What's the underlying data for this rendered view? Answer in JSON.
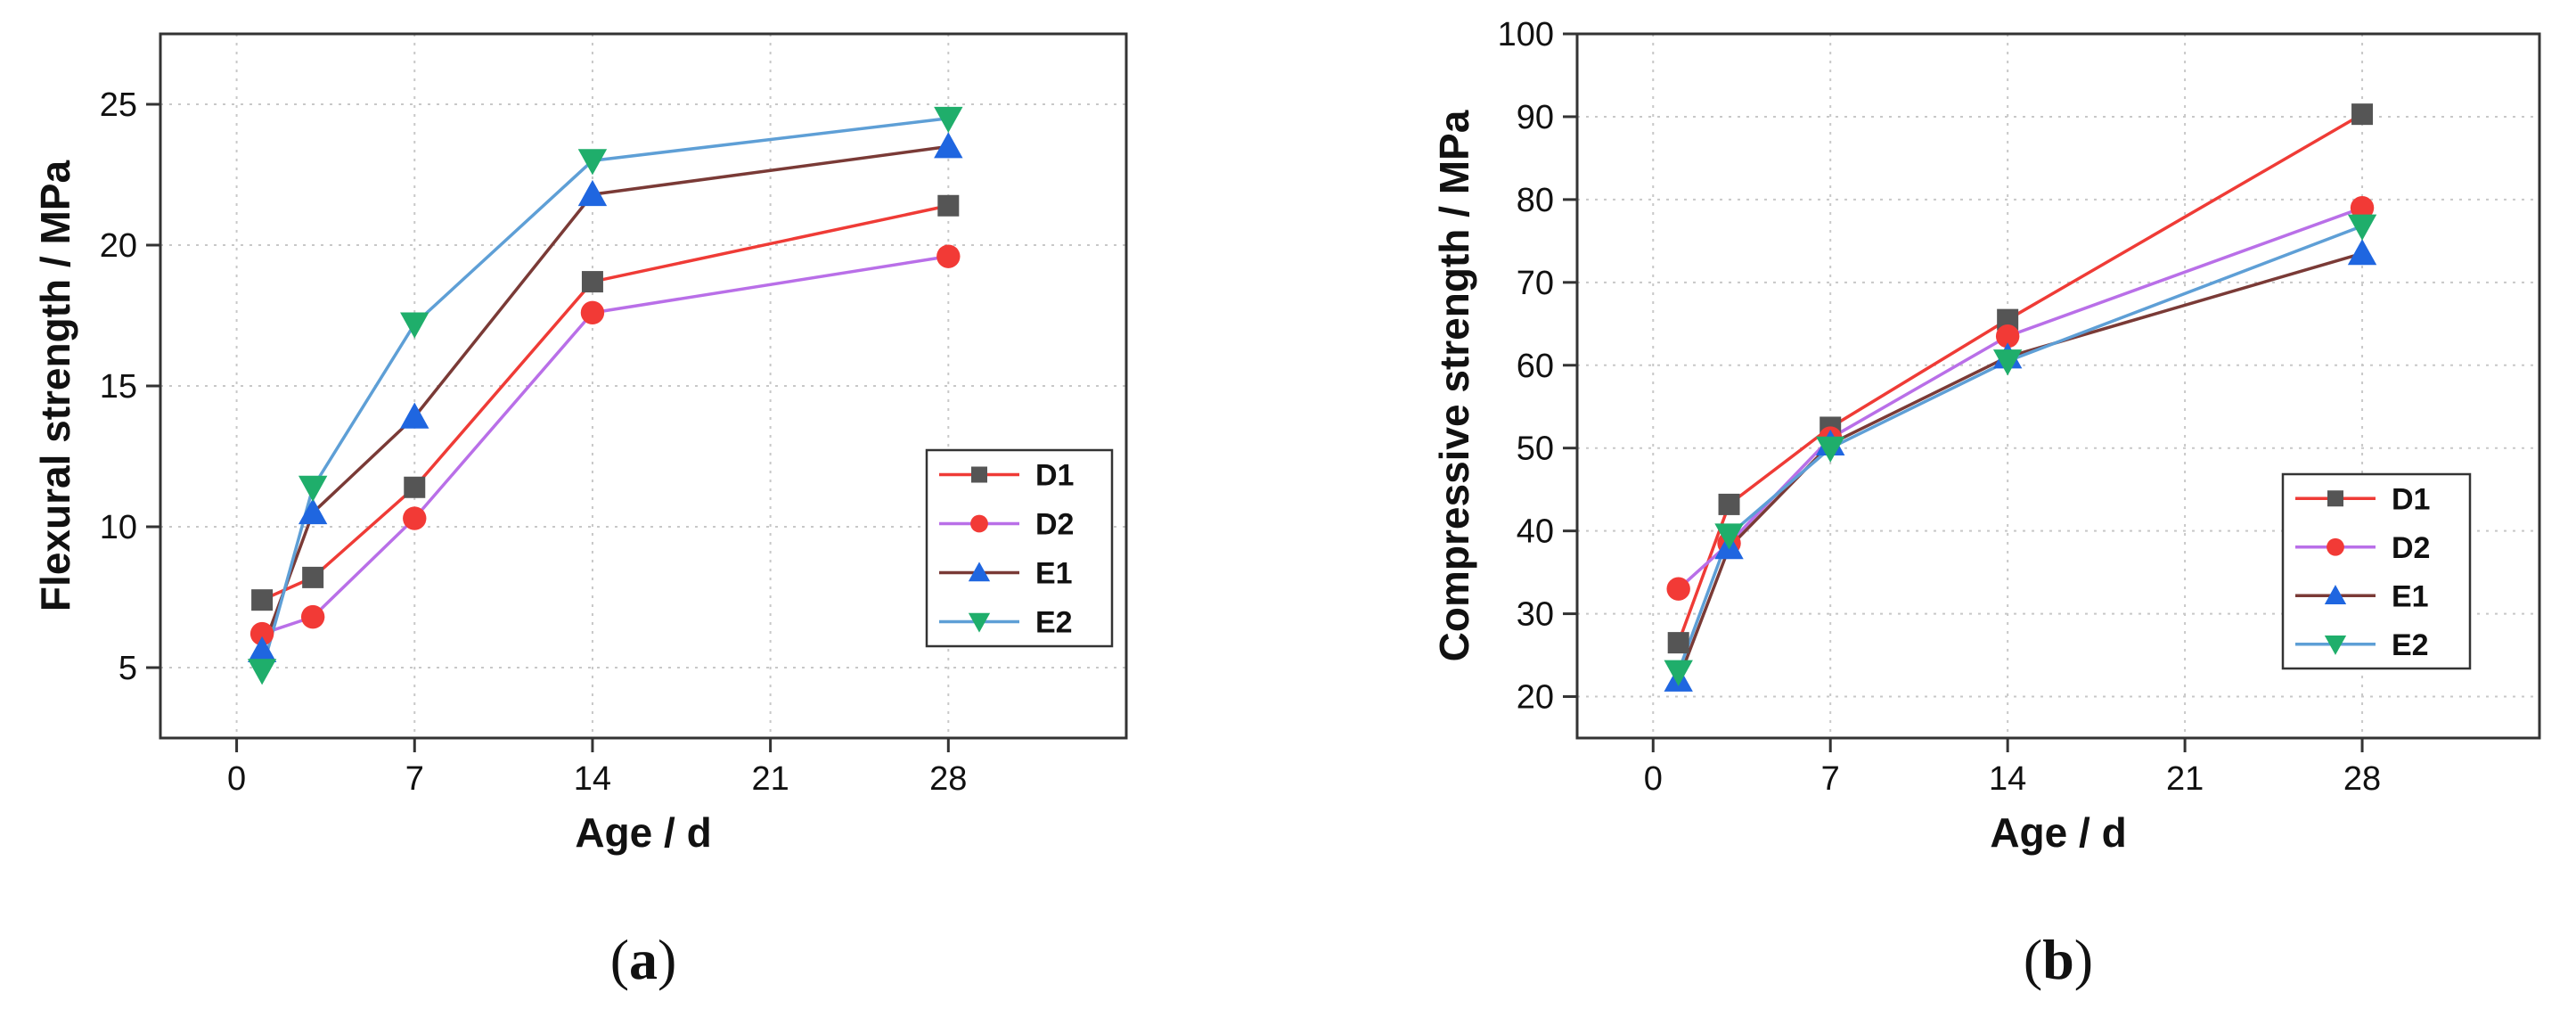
{
  "chart_data": [
    {
      "type": "line",
      "xlabel": "Age / d",
      "ylabel": "Flexural strength / MPa",
      "x": [
        1,
        3,
        7,
        14,
        28
      ],
      "xlim": [
        -3,
        35
      ],
      "ylim": [
        2.5,
        27.5
      ],
      "xticks": [
        0,
        7,
        14,
        21,
        28
      ],
      "yticks": [
        5,
        10,
        15,
        20,
        25
      ],
      "grid": true,
      "legend_position": "center-right",
      "series": [
        {
          "name": "D1",
          "color": "#ef3b36",
          "marker_color": "#555555",
          "marker": "square",
          "values": [
            7.4,
            8.2,
            11.4,
            18.7,
            21.4
          ]
        },
        {
          "name": "D2",
          "color": "#b96fe8",
          "marker_color": "#f23a36",
          "marker": "circle",
          "values": [
            6.2,
            6.8,
            10.3,
            17.6,
            19.6
          ]
        },
        {
          "name": "E1",
          "color": "#7a3a36",
          "marker_color": "#1f66e0",
          "marker": "triangle-up",
          "values": [
            5.6,
            10.5,
            13.9,
            21.8,
            23.5
          ]
        },
        {
          "name": "E2",
          "color": "#5e9fd6",
          "marker_color": "#1fae6b",
          "marker": "triangle-down",
          "values": [
            4.9,
            11.4,
            17.2,
            23.0,
            24.5
          ]
        }
      ],
      "caption_open": "(",
      "caption_letter": "a",
      "caption_close": ")"
    },
    {
      "type": "line",
      "xlabel": "Age / d",
      "ylabel": "Compressive strength / MPa",
      "x": [
        1,
        3,
        7,
        14,
        28
      ],
      "xlim": [
        -3,
        35
      ],
      "ylim": [
        15,
        100
      ],
      "xticks": [
        0,
        7,
        14,
        21,
        28
      ],
      "yticks": [
        20,
        30,
        40,
        50,
        60,
        70,
        80,
        90,
        100
      ],
      "grid": true,
      "legend_position": "bottom-right",
      "series": [
        {
          "name": "D1",
          "color": "#ef3b36",
          "marker_color": "#555555",
          "marker": "square",
          "values": [
            26.5,
            43.2,
            52.5,
            65.5,
            90.3
          ]
        },
        {
          "name": "D2",
          "color": "#b96fe8",
          "marker_color": "#f23a36",
          "marker": "circle",
          "values": [
            33.0,
            38.5,
            51.2,
            63.5,
            79.0
          ]
        },
        {
          "name": "E1",
          "color": "#7a3a36",
          "marker_color": "#1f66e0",
          "marker": "triangle-up",
          "values": [
            22.0,
            38.0,
            50.5,
            61.0,
            73.5
          ]
        },
        {
          "name": "E2",
          "color": "#5e9fd6",
          "marker_color": "#1fae6b",
          "marker": "triangle-down",
          "values": [
            23.0,
            39.5,
            50.0,
            60.5,
            76.8
          ]
        }
      ],
      "caption_open": "(",
      "caption_letter": "b",
      "caption_close": ")"
    }
  ]
}
